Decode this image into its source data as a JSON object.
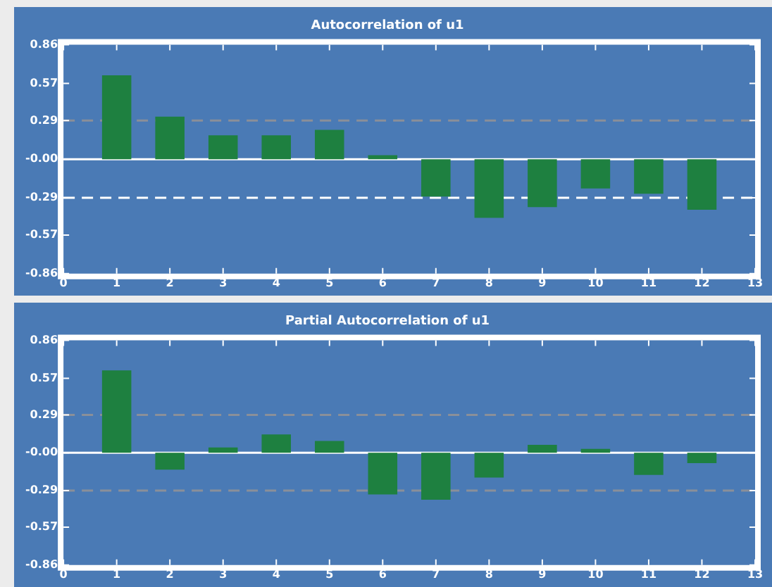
{
  "chart_data": [
    {
      "type": "bar",
      "title": "Autocorrelation of u1",
      "x": [
        1,
        2,
        3,
        4,
        5,
        6,
        7,
        8,
        9,
        10,
        11,
        12
      ],
      "series": [
        {
          "color": "#1e8040",
          "values": [
            0.63,
            0.32,
            0.18,
            0.18,
            0.22,
            0.03,
            -0.28,
            -0.44,
            -0.36,
            -0.22,
            -0.26,
            -0.38
          ]
        }
      ],
      "xlim": [
        0,
        13
      ],
      "xticks": [
        0,
        1,
        2,
        3,
        4,
        5,
        6,
        7,
        8,
        9,
        10,
        11,
        12,
        13
      ],
      "ylim": [
        -0.86,
        0.86
      ],
      "yticks": [
        -0.86,
        -0.57,
        -0.29,
        {
          "value": 0,
          "label": "-0.00"
        },
        0.29,
        0.57,
        0.86
      ],
      "ref_lines": [
        {
          "axis": "y",
          "value": 0,
          "color": "#ffffff",
          "line_style": "solid"
        },
        {
          "axis": "y",
          "value": 0.29,
          "color": "#8a8f99",
          "line_style": "dashed"
        },
        {
          "axis": "y",
          "value": -0.29,
          "color": "#ffffff",
          "line_style": "dashed"
        }
      ],
      "grid": false,
      "legend": false
    },
    {
      "type": "bar",
      "title": "Partial Autocorrelation of u1",
      "x": [
        1,
        2,
        3,
        4,
        5,
        6,
        7,
        8,
        9,
        10,
        11,
        12
      ],
      "series": [
        {
          "color": "#1e8040",
          "values": [
            0.63,
            -0.13,
            0.04,
            0.14,
            0.09,
            -0.32,
            -0.36,
            -0.19,
            0.06,
            0.03,
            -0.17,
            -0.08
          ]
        }
      ],
      "xlim": [
        0,
        13
      ],
      "xticks": [
        0,
        1,
        2,
        3,
        4,
        5,
        6,
        7,
        8,
        9,
        10,
        11,
        12,
        13
      ],
      "ylim": [
        -0.86,
        0.86
      ],
      "yticks": [
        -0.86,
        -0.57,
        -0.29,
        {
          "value": 0,
          "label": "-0.00"
        },
        0.29,
        0.57,
        0.86
      ],
      "ref_lines": [
        {
          "axis": "y",
          "value": 0,
          "color": "#ffffff",
          "line_style": "solid"
        },
        {
          "axis": "y",
          "value": 0.29,
          "color": "#8a8f99",
          "line_style": "dashed"
        },
        {
          "axis": "y",
          "value": -0.29,
          "color": "#8a8f99",
          "line_style": "dashed"
        }
      ],
      "grid": false,
      "legend": false
    }
  ]
}
